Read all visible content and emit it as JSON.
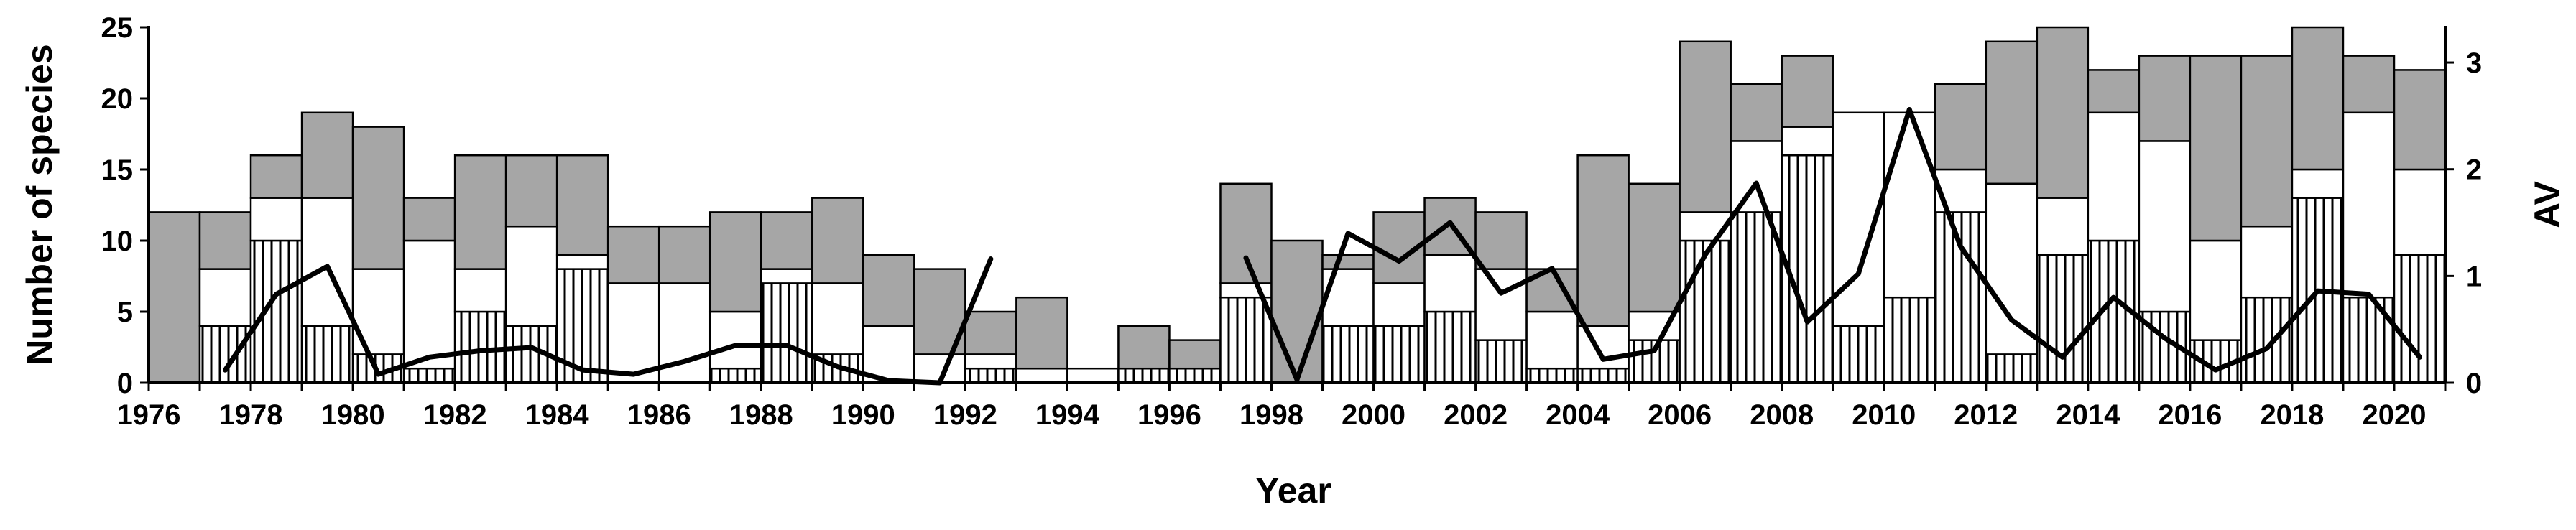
{
  "chart_data": {
    "type": "bar",
    "subtype": "stacked bar with line on secondary axis",
    "xlabel": "Year",
    "ylabel": "Number of species",
    "y2label": "AV",
    "ylim": [
      0,
      25
    ],
    "y2lim": [
      0,
      3.33
    ],
    "yticks": [
      "0",
      "5",
      "10",
      "15",
      "20",
      "25"
    ],
    "y2ticks": [
      "0",
      "1",
      "2",
      "3"
    ],
    "xticks": [
      "1976",
      "1978",
      "1980",
      "1982",
      "1984",
      "1986",
      "1988",
      "1990",
      "1992",
      "1994",
      "1996",
      "1998",
      "2000",
      "2002",
      "2004",
      "2006",
      "2008",
      "2010",
      "2012",
      "2014",
      "2016",
      "2018",
      "2020"
    ],
    "grid": false,
    "legend": "none",
    "colors": {
      "hatched": "#ffffff",
      "white": "#ffffff",
      "grey": "#a6a6a6",
      "line": "#000000"
    },
    "years": [
      1976,
      1977,
      1978,
      1979,
      1980,
      1981,
      1982,
      1983,
      1984,
      1985,
      1986,
      1987,
      1988,
      1989,
      1990,
      1991,
      1992,
      1993,
      1994,
      1995,
      1996,
      1997,
      1998,
      1999,
      2000,
      2001,
      2002,
      2003,
      2004,
      2005,
      2006,
      2007,
      2008,
      2009,
      2010,
      2011,
      2012,
      2013,
      2014,
      2015,
      2016,
      2017,
      2018,
      2019,
      2020
    ],
    "series": [
      {
        "style": "hatched",
        "values": [
          0,
          4,
          10,
          4,
          2,
          1,
          5,
          4,
          8,
          0,
          0,
          1,
          7,
          2,
          0,
          0,
          1,
          0,
          0,
          1,
          1,
          6,
          0,
          4,
          4,
          5,
          3,
          1,
          1,
          3,
          10,
          12,
          16,
          4,
          6,
          12,
          2,
          9,
          10,
          5,
          3,
          6,
          13,
          6,
          9
        ]
      },
      {
        "style": "white",
        "values": [
          0,
          4,
          3,
          9,
          6,
          9,
          3,
          7,
          1,
          7,
          7,
          4,
          1,
          5,
          4,
          2,
          1,
          1,
          1,
          0,
          0,
          1,
          0,
          4,
          3,
          4,
          5,
          4,
          3,
          2,
          2,
          5,
          2,
          15,
          13,
          3,
          12,
          4,
          9,
          12,
          7,
          5,
          2,
          13,
          6
        ]
      },
      {
        "style": "grey",
        "values": [
          12,
          4,
          3,
          6,
          10,
          3,
          8,
          5,
          7,
          4,
          4,
          7,
          4,
          6,
          5,
          6,
          3,
          5,
          0,
          3,
          2,
          7,
          10,
          1,
          5,
          4,
          4,
          3,
          12,
          9,
          12,
          4,
          5,
          0,
          0,
          6,
          10,
          12,
          3,
          6,
          13,
          12,
          10,
          4,
          7
        ]
      },
      {
        "style": "line",
        "axis": "secondary",
        "values": [
          null,
          0.12,
          0.83,
          1.09,
          0.08,
          0.24,
          0.3,
          0.33,
          0.12,
          0.08,
          0.2,
          0.35,
          0.35,
          0.15,
          0.02,
          0.0,
          1.16,
          null,
          null,
          null,
          null,
          1.17,
          0.03,
          1.4,
          1.14,
          1.5,
          0.84,
          1.07,
          0.22,
          0.3,
          1.2,
          1.87,
          0.57,
          1.02,
          2.56,
          1.28,
          0.59,
          0.24,
          0.8,
          0.42,
          0.12,
          0.32,
          0.86,
          0.83,
          0.24
        ]
      }
    ]
  }
}
